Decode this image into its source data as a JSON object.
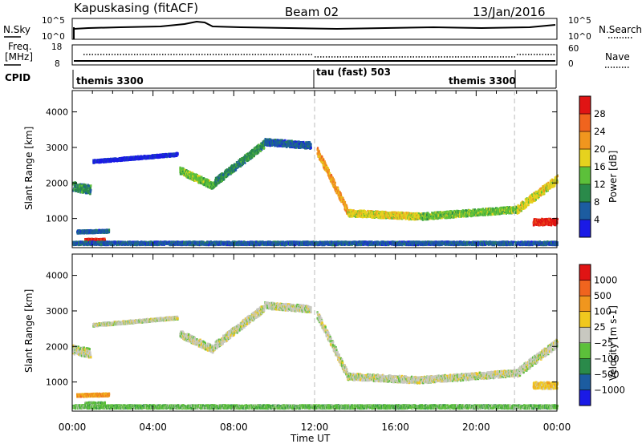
{
  "header": {
    "station": "Kapuskasing (fitACF)",
    "beam": "Beam 02",
    "date": "13/Jan/2016"
  },
  "noise_panel": {
    "left_label": "N.Sky",
    "left_ticks": [
      "10^5",
      "10^0"
    ],
    "right_label": "N.Search",
    "right_ticks": [
      "10^5",
      "10^0"
    ]
  },
  "freq_panel": {
    "left_label_1": "Freq.",
    "left_label_2": "[MHz]",
    "left_ticks": [
      "18",
      "8"
    ],
    "right_label": "Nave",
    "right_ticks": [
      "60",
      "0"
    ]
  },
  "cpid": {
    "label": "CPID",
    "segments": [
      "themis 3300",
      "tau (fast) 503",
      "themis 3300"
    ],
    "boundaries_ut": [
      12.0,
      21.9
    ]
  },
  "colors": {
    "power_scale": [
      "#1a1ae6",
      "#1c5ca0",
      "#2a8a4a",
      "#5cc03a",
      "#e6d21e",
      "#f0961e",
      "#f0641e",
      "#e01414"
    ],
    "velocity_scale": [
      "#1a1ae6",
      "#1c5ca0",
      "#2a8a4a",
      "#5cc03a",
      "#c8c8c0",
      "#f0c81e",
      "#f0961e",
      "#f0641e",
      "#e01414"
    ]
  },
  "chart_data": [
    {
      "type": "heatmap",
      "name_on_colorbar": "Power [dB]",
      "ylabel": "Slant Range [km]",
      "xlabel": "",
      "xlim_ut": [
        0,
        24
      ],
      "ylim_km": [
        180,
        4600
      ],
      "yticks": [
        "1000",
        "2000",
        "3000",
        "4000"
      ],
      "colorbar_ticks": [
        "28",
        "24",
        "20",
        "16",
        "12",
        "8",
        "4"
      ],
      "echo_bands": [
        {
          "t": [
            0.0,
            0.9
          ],
          "r_center": [
            1900,
            1800
          ],
          "width": 250,
          "color_index": 2
        },
        {
          "t": [
            0.2,
            1.8
          ],
          "r_center": [
            620,
            640
          ],
          "width": 80,
          "color_index": 1
        },
        {
          "t": [
            0.6,
            1.6
          ],
          "r_center": [
            380,
            380
          ],
          "width": 90,
          "color_index": 7
        },
        {
          "t": [
            1.0,
            5.2
          ],
          "r_center": [
            2600,
            2800
          ],
          "width": 80,
          "color_index": 0
        },
        {
          "t": [
            5.3,
            7.0
          ],
          "r_center": [
            2350,
            1900
          ],
          "width": 200,
          "color_index": 3
        },
        {
          "t": [
            7.0,
            9.5
          ],
          "r_center": [
            2000,
            3100
          ],
          "width": 220,
          "color_index": 2
        },
        {
          "t": [
            9.5,
            11.8
          ],
          "r_center": [
            3150,
            3050
          ],
          "width": 180,
          "color_index": 1
        },
        {
          "t": [
            12.1,
            13.6
          ],
          "r_center": [
            2900,
            1200
          ],
          "width": 230,
          "color_index": 5
        },
        {
          "t": [
            13.6,
            17.2
          ],
          "r_center": [
            1150,
            1050
          ],
          "width": 180,
          "color_index": 4
        },
        {
          "t": [
            17.2,
            22.0
          ],
          "r_center": [
            1050,
            1250
          ],
          "width": 180,
          "color_index": 3
        },
        {
          "t": [
            22.0,
            24.0
          ],
          "r_center": [
            1250,
            2100
          ],
          "width": 240,
          "color_index": 4
        },
        {
          "t": [
            22.8,
            24.0
          ],
          "r_center": [
            900,
            900
          ],
          "width": 180,
          "color_index": 7
        },
        {
          "t": [
            0.0,
            24.0
          ],
          "r_center": [
            300,
            300
          ],
          "width": 90,
          "color_index": 1
        }
      ]
    },
    {
      "type": "heatmap",
      "name_on_colorbar": "Velocity [m s-1]",
      "ylabel": "Slant Range [km]",
      "xlabel": "Time UT",
      "xlim_ut": [
        0,
        24
      ],
      "ylim_km": [
        180,
        4600
      ],
      "xticks": [
        "00:00",
        "04:00",
        "08:00",
        "12:00",
        "16:00",
        "20:00",
        "00:00"
      ],
      "yticks": [
        "1000",
        "2000",
        "3000",
        "4000"
      ],
      "colorbar_ticks": [
        "1000",
        "500",
        "100",
        "25",
        "−25",
        "−100",
        "−500",
        "−1000"
      ],
      "echo_bands": [
        {
          "t": [
            0.0,
            0.9
          ],
          "r_center": [
            1900,
            1800
          ],
          "width": 250,
          "color_index": 4
        },
        {
          "t": [
            0.2,
            1.8
          ],
          "r_center": [
            620,
            640
          ],
          "width": 80,
          "color_index": 6
        },
        {
          "t": [
            0.6,
            1.6
          ],
          "r_center": [
            380,
            380
          ],
          "width": 90,
          "color_index": 3
        },
        {
          "t": [
            1.0,
            5.2
          ],
          "r_center": [
            2600,
            2800
          ],
          "width": 80,
          "color_index": 4
        },
        {
          "t": [
            5.3,
            7.0
          ],
          "r_center": [
            2350,
            1900
          ],
          "width": 200,
          "color_index": 4
        },
        {
          "t": [
            7.0,
            9.5
          ],
          "r_center": [
            2000,
            3100
          ],
          "width": 220,
          "color_index": 4
        },
        {
          "t": [
            9.5,
            11.8
          ],
          "r_center": [
            3150,
            3050
          ],
          "width": 180,
          "color_index": 4
        },
        {
          "t": [
            12.1,
            13.6
          ],
          "r_center": [
            2900,
            1200
          ],
          "width": 230,
          "color_index": 4
        },
        {
          "t": [
            13.6,
            17.2
          ],
          "r_center": [
            1150,
            1050
          ],
          "width": 180,
          "color_index": 4
        },
        {
          "t": [
            17.2,
            22.0
          ],
          "r_center": [
            1050,
            1250
          ],
          "width": 180,
          "color_index": 4
        },
        {
          "t": [
            22.0,
            24.0
          ],
          "r_center": [
            1250,
            2100
          ],
          "width": 240,
          "color_index": 4
        },
        {
          "t": [
            22.8,
            24.0
          ],
          "r_center": [
            900,
            900
          ],
          "width": 180,
          "color_index": 5
        },
        {
          "t": [
            0.0,
            24.0
          ],
          "r_center": [
            300,
            300
          ],
          "width": 90,
          "color_index": 3
        }
      ]
    }
  ]
}
